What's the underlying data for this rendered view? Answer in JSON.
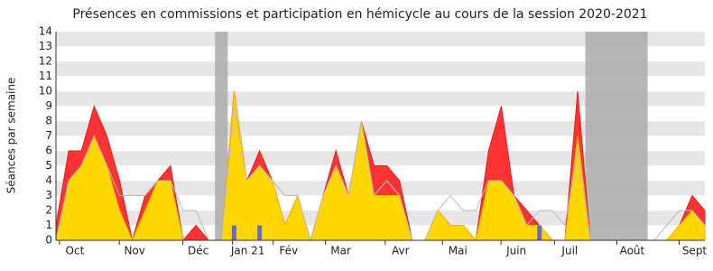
{
  "chart_data": {
    "type": "area",
    "title": "Présences en commissions et participation en hémicycle au cours de la session 2020-2021",
    "y_label": "Séances par semaine",
    "x": [
      0,
      1,
      2,
      3,
      4,
      5,
      6,
      7,
      8,
      9,
      10,
      11,
      12,
      13,
      14,
      15,
      16,
      17,
      18,
      19,
      20,
      21,
      22,
      23,
      24,
      25,
      26,
      27,
      28,
      29,
      30,
      31,
      32,
      33,
      34,
      35,
      36,
      37,
      38,
      39,
      40,
      41,
      42,
      43,
      44,
      45,
      46,
      47,
      48,
      49,
      50,
      51
    ],
    "xlim": [
      0,
      51
    ],
    "xticks": [
      {
        "value": 1.2,
        "label": "Oct"
      },
      {
        "value": 5.9,
        "label": "Nov"
      },
      {
        "value": 10.9,
        "label": "Déc"
      },
      {
        "value": 14.8,
        "label": "Jan 21"
      },
      {
        "value": 18,
        "label": "Fév"
      },
      {
        "value": 22.1,
        "label": "Mar"
      },
      {
        "value": 26.8,
        "label": "Avr"
      },
      {
        "value": 31.3,
        "label": "Mai"
      },
      {
        "value": 35.9,
        "label": "Juin"
      },
      {
        "value": 40.1,
        "label": "Juil"
      },
      {
        "value": 45,
        "label": "Août"
      },
      {
        "value": 49.9,
        "label": "Sept"
      }
    ],
    "ylim": [
      0,
      14
    ],
    "yticks": [
      0,
      1,
      2,
      3,
      4,
      5,
      6,
      7,
      8,
      9,
      10,
      11,
      12,
      13,
      14
    ],
    "vacation_bands": [
      [
        12.5,
        13.5
      ],
      [
        41.6,
        46.5
      ]
    ],
    "series": [
      {
        "kind": "area",
        "color": "#ff3333",
        "values": [
          1,
          6,
          6,
          9,
          7,
          4,
          0,
          3,
          4,
          5,
          0,
          1,
          0,
          0,
          10,
          4,
          6,
          4,
          1,
          3,
          0,
          3,
          6,
          3,
          8,
          5,
          5,
          4,
          0,
          0,
          2,
          1,
          1,
          0,
          6,
          9,
          3,
          2,
          1,
          0,
          0,
          10,
          0,
          0,
          0,
          0,
          0,
          0,
          0,
          1,
          3,
          2
        ]
      },
      {
        "kind": "area",
        "color": "#ffd700",
        "values": [
          0,
          4,
          5,
          7,
          5,
          2,
          0,
          2,
          4,
          4,
          0,
          0,
          0,
          0,
          10,
          4,
          5,
          4,
          1,
          3,
          0,
          3,
          5,
          3,
          8,
          3,
          3,
          3,
          0,
          0,
          2,
          1,
          1,
          0,
          4,
          4,
          3,
          1,
          1,
          0,
          0,
          7,
          0,
          0,
          0,
          0,
          0,
          0,
          0,
          1,
          2,
          1
        ]
      },
      {
        "kind": "line",
        "color": "#bbbbbb",
        "values": [
          0,
          4,
          5,
          7,
          5,
          3,
          3,
          3,
          4,
          4,
          2,
          2,
          0,
          0,
          9,
          4,
          5,
          4,
          3,
          3,
          0,
          3,
          5,
          3,
          8,
          3,
          4,
          3,
          0,
          0,
          2,
          3,
          2,
          2,
          4,
          4,
          3,
          1,
          2,
          2,
          1,
          6,
          0,
          0,
          0,
          0,
          0,
          0,
          1,
          2,
          2,
          1
        ]
      },
      {
        "kind": "bar",
        "color": "#6666dd",
        "values": [
          0,
          0,
          0,
          0,
          0,
          0,
          0,
          0,
          0,
          0,
          0,
          0,
          0,
          0,
          1,
          0,
          1,
          0,
          0,
          0,
          0,
          0,
          0,
          0,
          0,
          0,
          0,
          0,
          0,
          0,
          0,
          0,
          0,
          0,
          0,
          0,
          0,
          0,
          1,
          0,
          0,
          0,
          0,
          0,
          0,
          0,
          0,
          0,
          0,
          0,
          0,
          0
        ]
      }
    ]
  }
}
